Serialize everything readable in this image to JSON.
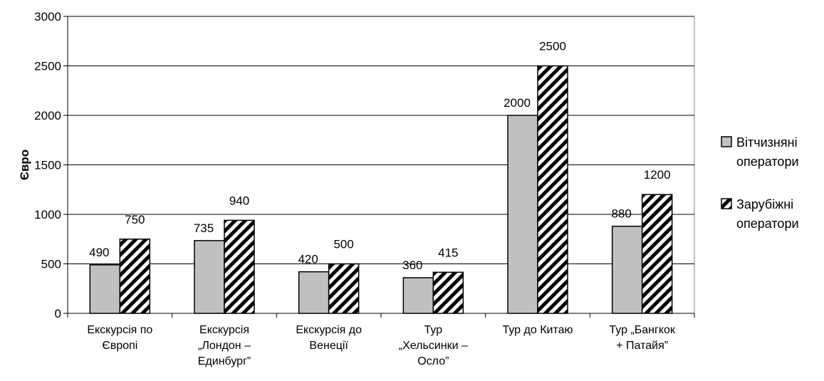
{
  "chart_data": {
    "type": "bar",
    "title": "",
    "xlabel": "",
    "ylabel": "Євро",
    "ylim": [
      0,
      3000
    ],
    "yticks": [
      0,
      500,
      1000,
      1500,
      2000,
      2500,
      3000
    ],
    "grid": true,
    "legend_position": "right",
    "categories": [
      [
        "Екскурсія по",
        "Європі"
      ],
      [
        "Екскурсія",
        "„Лондон –",
        "Единбург”"
      ],
      [
        "Екскурсія до",
        "Венеції"
      ],
      [
        "Тур",
        "„Хельсинки –",
        "Осло”"
      ],
      [
        "Тур до Китаю"
      ],
      [
        "Тур „Бангкок",
        "+ Патайя”"
      ]
    ],
    "series": [
      {
        "name": [
          "Вітчизняні",
          "оператори"
        ],
        "values": [
          490,
          735,
          420,
          360,
          2000,
          880
        ],
        "fill": "#c0c0c0",
        "pattern": "solid"
      },
      {
        "name": [
          "Зарубіжні",
          "оператори"
        ],
        "values": [
          750,
          940,
          500,
          415,
          2500,
          1200
        ],
        "fill": "#ffffff",
        "pattern": "diagonal-hatch"
      }
    ]
  }
}
